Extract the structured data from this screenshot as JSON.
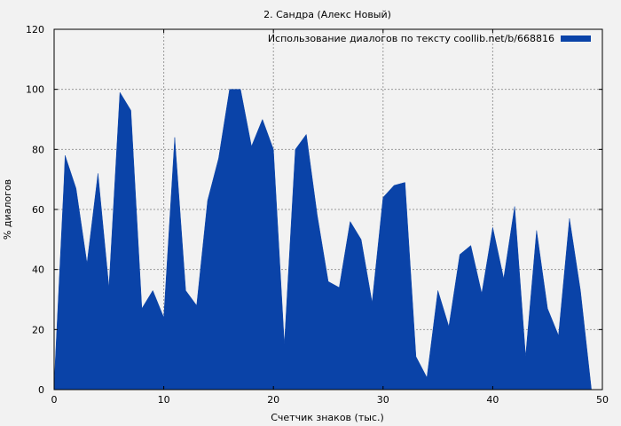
{
  "chart_data": {
    "type": "area",
    "title": "2. Сандра (Алекс Новый)",
    "xlabel": "Счетчик знаков (тыс.)",
    "ylabel": "% диалогов",
    "xlim": [
      0,
      50
    ],
    "ylim": [
      0,
      120
    ],
    "xticks": [
      "0",
      "10",
      "20",
      "30",
      "40",
      "50"
    ],
    "yticks": [
      "0",
      "20",
      "40",
      "60",
      "80",
      "100",
      "120"
    ],
    "grid": true,
    "legend_position": "top-right",
    "series": [
      {
        "name": "Использование диалогов по тексту coollib.net/b/668816",
        "color": "#0a43a8",
        "x": [
          0,
          0.1,
          0.9,
          1,
          2,
          3,
          4,
          5,
          6,
          7,
          8,
          9,
          10,
          11,
          12,
          13,
          14,
          15,
          16,
          17,
          18,
          19,
          20,
          21,
          22,
          23,
          24,
          25,
          26,
          27,
          28,
          29,
          30,
          31,
          32,
          33,
          34,
          35,
          36,
          37,
          38,
          39,
          40,
          41,
          42,
          43,
          44,
          45,
          46,
          47,
          48,
          49
        ],
        "y": [
          0,
          9,
          69,
          78,
          67,
          42,
          72,
          34,
          99,
          93,
          27,
          33,
          24,
          84,
          33,
          28,
          63,
          77,
          100,
          100,
          81,
          90,
          80,
          15,
          80,
          85,
          58,
          36,
          34,
          56,
          50,
          29,
          64,
          68,
          69,
          11,
          4,
          33,
          21,
          45,
          48,
          32,
          54,
          37,
          61,
          11,
          53,
          27,
          18,
          57,
          33,
          0
        ]
      }
    ]
  }
}
